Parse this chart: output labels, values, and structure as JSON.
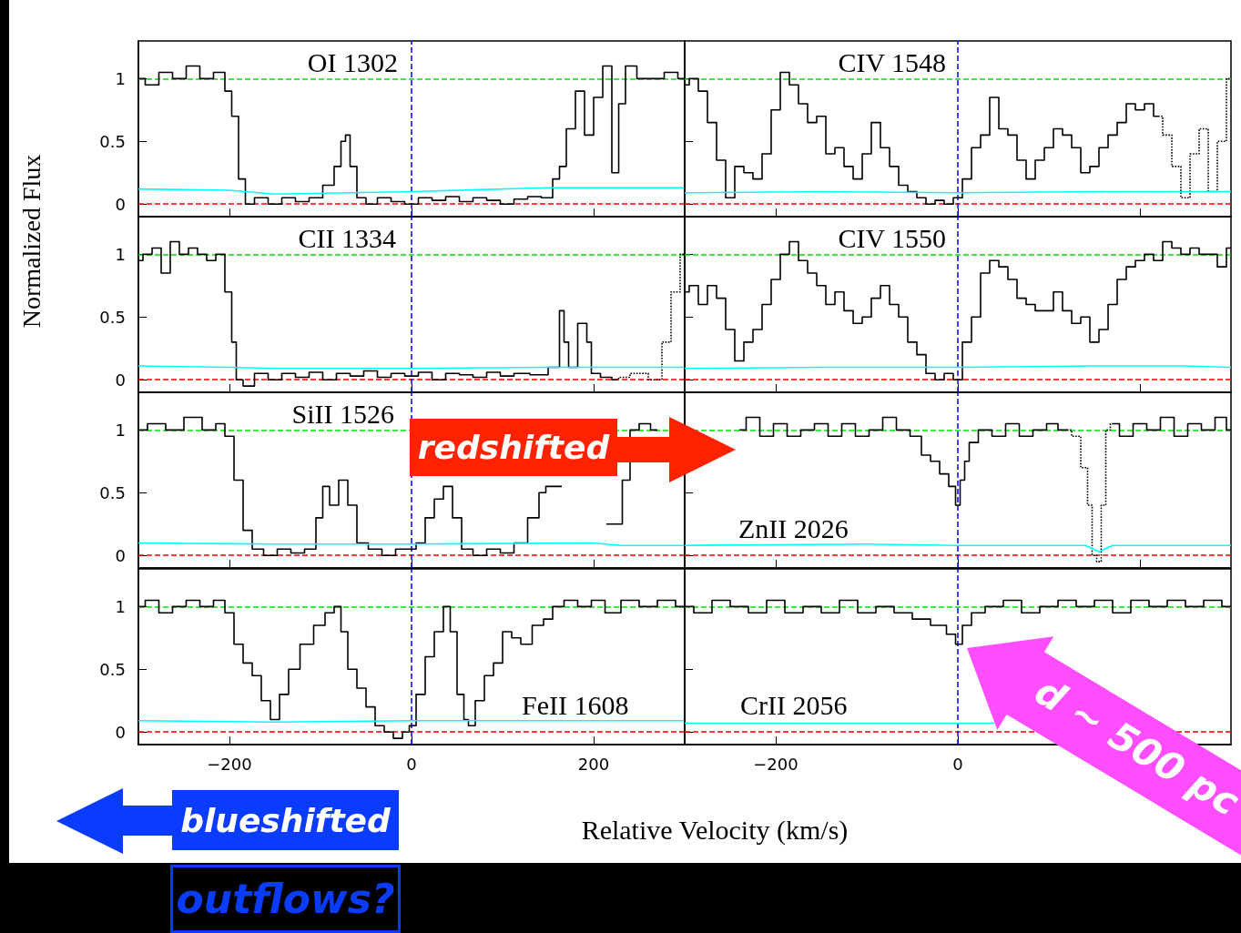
{
  "chart_data": [
    {
      "type": "step",
      "title": "OI 1302",
      "ylabel": "Normalized Flux",
      "xlim": [
        -300,
        300
      ],
      "xticks": [
        -200,
        0,
        200
      ],
      "ylim": [
        -0.1,
        1.3
      ],
      "yticks": [
        0,
        0.5,
        1
      ],
      "tick_labels": "y",
      "ref_lines": [
        {
          "axis": "y",
          "value": 0,
          "color": "#ff0000",
          "line_style": "dashed"
        },
        {
          "axis": "y",
          "value": 1,
          "color": "#00e000",
          "line_style": "dashed"
        },
        {
          "axis": "x",
          "value": 0,
          "color": "#0000ff",
          "line_style": "dashed"
        }
      ],
      "series": [
        {
          "color": "#000000",
          "x": [
            -300,
            -285,
            -270,
            -255,
            -240,
            -225,
            -210,
            -200,
            -195,
            -185,
            -180,
            -165,
            -150,
            -135,
            -120,
            -105,
            -90,
            -80,
            -75,
            -70,
            -65,
            -55,
            -45,
            -30,
            -15,
            0,
            15,
            30,
            45,
            60,
            75,
            90,
            105,
            120,
            135,
            150,
            160,
            165,
            175,
            185,
            195,
            205,
            215,
            225,
            230,
            240,
            255,
            270,
            285,
            300
          ],
          "values": [
            1.0,
            0.95,
            1.05,
            1.0,
            1.1,
            1.0,
            1.05,
            0.9,
            0.7,
            0.2,
            0.0,
            0.05,
            0.0,
            0.05,
            0.02,
            0.05,
            0.15,
            0.3,
            0.5,
            0.55,
            0.3,
            0.05,
            0.0,
            0.05,
            0.02,
            0.0,
            0.05,
            0.03,
            0.06,
            0.02,
            0.05,
            0.03,
            0.0,
            0.04,
            0.06,
            0.05,
            0.2,
            0.3,
            0.6,
            0.9,
            0.55,
            0.85,
            1.1,
            0.25,
            0.8,
            1.1,
            1.0,
            1.0,
            1.05,
            1.0
          ]
        },
        {
          "type": "line",
          "color": "#00ffff",
          "x": [
            -300,
            -200,
            -150,
            0,
            150,
            300
          ],
          "values": [
            0.12,
            0.11,
            0.08,
            0.1,
            0.13,
            0.13
          ]
        }
      ]
    },
    {
      "type": "step",
      "title": "CIV 1548",
      "xlim": [
        -300,
        300
      ],
      "xticks": [
        -200,
        0,
        200
      ],
      "ylim": [
        -0.1,
        1.3
      ],
      "yticks": [
        0,
        0.5,
        1
      ],
      "tick_labels": false,
      "ref_lines": [
        {
          "axis": "y",
          "value": 0,
          "color": "#ff0000",
          "line_style": "dashed"
        },
        {
          "axis": "y",
          "value": 1,
          "color": "#00e000",
          "line_style": "dashed"
        },
        {
          "axis": "x",
          "value": 0,
          "color": "#0000ff",
          "line_style": "dashed"
        }
      ],
      "series": [
        {
          "color": "#000000",
          "x": [
            -300,
            -290,
            -280,
            -270,
            -260,
            -250,
            -240,
            -230,
            -220,
            -210,
            -200,
            -190,
            -180,
            -170,
            -160,
            -150,
            -140,
            -130,
            -120,
            -110,
            -100,
            -90,
            -80,
            -70,
            -60,
            -50,
            -40,
            -30,
            -20,
            -10,
            0,
            10,
            20,
            30,
            40,
            50,
            60,
            70,
            80,
            90,
            100,
            110,
            120,
            130,
            140,
            150,
            160,
            170,
            180,
            190,
            200,
            210,
            220
          ],
          "values": [
            0.95,
            1.0,
            0.9,
            0.65,
            0.35,
            0.05,
            0.3,
            0.25,
            0.2,
            0.4,
            0.75,
            1.05,
            0.95,
            0.8,
            0.65,
            0.7,
            0.4,
            0.45,
            0.3,
            0.2,
            0.4,
            0.65,
            0.45,
            0.3,
            0.15,
            0.1,
            0.05,
            0.0,
            0.03,
            0.0,
            0.05,
            0.2,
            0.45,
            0.55,
            0.85,
            0.6,
            0.55,
            0.35,
            0.2,
            0.35,
            0.45,
            0.6,
            0.55,
            0.45,
            0.25,
            0.3,
            0.45,
            0.55,
            0.65,
            0.8,
            0.75,
            0.8,
            0.7
          ]
        },
        {
          "color": "#000000",
          "line_style": "dotted",
          "x": [
            220,
            230,
            240,
            250,
            260,
            270,
            280,
            290,
            300
          ],
          "values": [
            0.7,
            0.55,
            0.3,
            0.05,
            0.4,
            0.6,
            0.1,
            0.5,
            1.0
          ]
        },
        {
          "type": "line",
          "color": "#00ffff",
          "x": [
            -300,
            -150,
            0,
            150,
            300
          ],
          "values": [
            0.09,
            0.1,
            0.09,
            0.1,
            0.1
          ]
        }
      ]
    },
    {
      "type": "step",
      "title": "CII 1334",
      "xlim": [
        -300,
        300
      ],
      "xticks": [
        -200,
        0,
        200
      ],
      "ylim": [
        -0.1,
        1.3
      ],
      "yticks": [
        0,
        0.5,
        1
      ],
      "tick_labels": "y",
      "ref_lines": [
        {
          "axis": "y",
          "value": 0,
          "color": "#ff0000",
          "line_style": "dashed"
        },
        {
          "axis": "y",
          "value": 1,
          "color": "#00e000",
          "line_style": "dashed"
        },
        {
          "axis": "x",
          "value": 0,
          "color": "#0000ff",
          "line_style": "dashed"
        }
      ],
      "series": [
        {
          "color": "#000000",
          "x": [
            -300,
            -290,
            -280,
            -270,
            -260,
            -250,
            -240,
            -230,
            -220,
            -210,
            -200,
            -195,
            -190,
            -180,
            -165,
            -150,
            -135,
            -120,
            -105,
            -90,
            -75,
            -60,
            -45,
            -30,
            -15,
            0,
            15,
            30,
            45,
            60,
            75,
            90,
            105,
            120,
            140,
            160,
            165,
            170,
            175,
            190,
            195,
            200,
            215,
            225
          ],
          "values": [
            0.95,
            1.0,
            1.05,
            0.85,
            1.1,
            1.0,
            1.05,
            1.0,
            0.95,
            1.0,
            0.7,
            0.3,
            0.0,
            -0.05,
            0.05,
            0.0,
            0.05,
            0.02,
            0.06,
            0.0,
            0.05,
            0.03,
            0.07,
            0.02,
            0.05,
            0.03,
            0.06,
            0.0,
            0.05,
            0.04,
            0.02,
            0.06,
            0.03,
            0.05,
            0.04,
            0.1,
            0.55,
            0.3,
            0.1,
            0.45,
            0.3,
            0.05,
            0.02,
            0.0
          ]
        },
        {
          "color": "#000000",
          "line_style": "dotted",
          "x": [
            225,
            230,
            250,
            270,
            280,
            290,
            300
          ],
          "values": [
            0.0,
            0.02,
            0.05,
            0.0,
            0.3,
            0.7,
            1.0
          ]
        },
        {
          "type": "line",
          "color": "#00ffff",
          "x": [
            -300,
            -200,
            -150,
            0,
            150,
            300
          ],
          "values": [
            0.11,
            0.1,
            0.09,
            0.09,
            0.1,
            0.1
          ]
        }
      ]
    },
    {
      "type": "step",
      "title": "CIV 1550",
      "xlim": [
        -300,
        300
      ],
      "xticks": [
        -200,
        0,
        200
      ],
      "ylim": [
        -0.1,
        1.3
      ],
      "yticks": [
        0,
        0.5,
        1
      ],
      "tick_labels": false,
      "ref_lines": [
        {
          "axis": "y",
          "value": 0,
          "color": "#ff0000",
          "line_style": "dashed"
        },
        {
          "axis": "y",
          "value": 1,
          "color": "#00e000",
          "line_style": "dashed"
        },
        {
          "axis": "x",
          "value": 0,
          "color": "#0000ff",
          "line_style": "dashed"
        }
      ],
      "series": [
        {
          "color": "#000000",
          "x": [
            -300,
            -290,
            -280,
            -270,
            -260,
            -250,
            -240,
            -230,
            -220,
            -210,
            -200,
            -190,
            -180,
            -170,
            -160,
            -150,
            -140,
            -130,
            -120,
            -110,
            -100,
            -90,
            -80,
            -70,
            -60,
            -50,
            -40,
            -30,
            -20,
            -10,
            0,
            10,
            20,
            30,
            40,
            50,
            60,
            70,
            80,
            90,
            100,
            110,
            120,
            130,
            140,
            150,
            160,
            170,
            180,
            190,
            200,
            210,
            220,
            230,
            240,
            250,
            260,
            270,
            280,
            290,
            300
          ],
          "values": [
            0.7,
            0.75,
            0.6,
            0.75,
            0.65,
            0.4,
            0.15,
            0.3,
            0.4,
            0.6,
            0.8,
            1.0,
            1.1,
            0.95,
            0.85,
            0.75,
            0.6,
            0.7,
            0.55,
            0.45,
            0.5,
            0.65,
            0.75,
            0.6,
            0.5,
            0.3,
            0.2,
            0.05,
            0.0,
            0.05,
            0.0,
            0.3,
            0.5,
            0.85,
            0.95,
            0.9,
            0.8,
            0.65,
            0.6,
            0.55,
            0.55,
            0.7,
            0.55,
            0.45,
            0.5,
            0.3,
            0.4,
            0.6,
            0.8,
            0.9,
            0.95,
            1.0,
            0.95,
            1.1,
            1.05,
            1.0,
            1.05,
            1.0,
            1.0,
            0.9,
            1.05
          ]
        },
        {
          "type": "line",
          "color": "#00ffff",
          "x": [
            -300,
            -150,
            0,
            150,
            250,
            300
          ],
          "values": [
            0.09,
            0.1,
            0.1,
            0.11,
            0.11,
            0.1
          ]
        }
      ]
    },
    {
      "type": "step",
      "title": "SiII 1526",
      "xlim": [
        -300,
        300
      ],
      "xticks": [
        -200,
        0,
        200
      ],
      "ylim": [
        -0.1,
        1.3
      ],
      "yticks": [
        0,
        0.5,
        1
      ],
      "tick_labels": "y",
      "annotations": [
        "redshifted"
      ],
      "ref_lines": [
        {
          "axis": "y",
          "value": 0,
          "color": "#ff0000",
          "line_style": "dashed"
        },
        {
          "axis": "y",
          "value": 1,
          "color": "#00e000",
          "line_style": "dashed"
        },
        {
          "axis": "x",
          "value": 0,
          "color": "#0000ff",
          "line_style": "dashed"
        }
      ],
      "series": [
        {
          "color": "#000000",
          "x": [
            -300,
            -280,
            -260,
            -240,
            -220,
            -210,
            -200,
            -190,
            -180,
            -170,
            -155,
            -140,
            -125,
            -110,
            -100,
            -95,
            -85,
            -75,
            -65,
            -55,
            -40,
            -25,
            -10,
            0,
            10,
            20,
            30,
            40,
            50,
            60,
            75,
            90,
            105,
            120,
            135,
            145,
            150,
            180,
            200,
            228,
            235,
            245,
            255,
            270
          ],
          "values": [
            1.0,
            1.05,
            1.0,
            1.1,
            1.0,
            1.05,
            0.95,
            0.6,
            0.2,
            0.05,
            0.0,
            0.05,
            0.02,
            0.05,
            0.3,
            0.55,
            0.4,
            0.6,
            0.4,
            0.1,
            0.05,
            0.0,
            0.05,
            0.05,
            0.1,
            0.3,
            0.45,
            0.55,
            0.3,
            0.05,
            0.0,
            0.05,
            0.02,
            0.1,
            0.3,
            0.5,
            0.55,
            null,
            null,
            0.25,
            0.6,
            1.0,
            1.05,
            1.0
          ]
        },
        {
          "type": "line",
          "color": "#00ffff",
          "x": [
            -300,
            -150,
            0,
            200,
            230,
            300
          ],
          "values": [
            0.1,
            0.09,
            0.09,
            0.1,
            0.08,
            0.08
          ]
        }
      ]
    },
    {
      "type": "step",
      "title": "ZnII 2026",
      "xlim": [
        -300,
        300
      ],
      "xticks": [
        -200,
        0,
        200
      ],
      "ylim": [
        -0.1,
        1.3
      ],
      "yticks": [
        0,
        0.5,
        1
      ],
      "tick_labels": false,
      "ref_lines": [
        {
          "axis": "y",
          "value": 0,
          "color": "#ff0000",
          "line_style": "dashed"
        },
        {
          "axis": "y",
          "value": 1,
          "color": "#00e000",
          "line_style": "dashed"
        },
        {
          "axis": "x",
          "value": 0,
          "color": "#0000ff",
          "line_style": "dashed"
        }
      ],
      "series": [
        {
          "color": "#000000",
          "x": [
            -240,
            -225,
            -210,
            -195,
            -180,
            -165,
            -150,
            -135,
            -120,
            -105,
            -90,
            -75,
            -60,
            -45,
            -35,
            -25,
            -15,
            -5,
            0,
            5,
            10,
            15,
            30,
            45,
            60,
            75,
            90,
            105,
            115,
            120
          ],
          "values": [
            1.0,
            1.1,
            0.95,
            1.05,
            0.95,
            1.0,
            1.05,
            0.95,
            1.05,
            0.95,
            1.0,
            1.1,
            1.0,
            0.95,
            0.8,
            0.75,
            0.65,
            0.55,
            0.4,
            0.6,
            0.75,
            0.9,
            1.0,
            0.95,
            1.05,
            0.95,
            1.0,
            1.05,
            1.0,
            1.0
          ]
        },
        {
          "color": "#000000",
          "line_style": "dotted",
          "x": [
            120,
            130,
            140,
            145,
            150,
            155,
            160,
            165,
            170
          ],
          "values": [
            1.0,
            0.95,
            0.7,
            0.4,
            0.0,
            -0.05,
            0.4,
            1.0,
            1.05
          ]
        },
        {
          "color": "#000000",
          "x": [
            170,
            185,
            200,
            215,
            230,
            245,
            260,
            275,
            290,
            300
          ],
          "values": [
            1.05,
            0.95,
            1.05,
            1.0,
            1.1,
            0.95,
            1.05,
            1.0,
            1.1,
            1.0
          ]
        },
        {
          "type": "line",
          "color": "#00ffff",
          "x": [
            -300,
            -100,
            0,
            140,
            155,
            170,
            300
          ],
          "values": [
            0.08,
            0.09,
            0.08,
            0.08,
            0.03,
            0.08,
            0.08
          ]
        }
      ]
    },
    {
      "type": "step",
      "title": "FeII 1608",
      "annotations": [
        "blueshifted",
        "outflows?"
      ],
      "xlim": [
        -300,
        300
      ],
      "xticks": [
        -200,
        0,
        200
      ],
      "ylim": [
        -0.1,
        1.3
      ],
      "yticks": [
        0,
        0.5,
        1
      ],
      "ref_lines": [
        {
          "axis": "y",
          "value": 0,
          "color": "#ff0000",
          "line_style": "dashed"
        },
        {
          "axis": "y",
          "value": 1,
          "color": "#00e000",
          "line_style": "dashed"
        },
        {
          "axis": "x",
          "value": 0,
          "color": "#0000ff",
          "line_style": "dashed"
        }
      ],
      "series": [
        {
          "color": "#000000",
          "x": [
            -300,
            -285,
            -270,
            -255,
            -240,
            -225,
            -210,
            -200,
            -190,
            -180,
            -170,
            -160,
            -150,
            -140,
            -130,
            -115,
            -100,
            -90,
            -80,
            -75,
            -65,
            -55,
            -45,
            -35,
            -25,
            -15,
            -5,
            0,
            10,
            20,
            30,
            40,
            45,
            55,
            60,
            65,
            75,
            85,
            95,
            105,
            115,
            125,
            140,
            150,
            160,
            175,
            190,
            205,
            220,
            240,
            260,
            280,
            300
          ],
          "values": [
            1.0,
            1.05,
            0.95,
            1.0,
            1.05,
            1.0,
            1.05,
            0.95,
            0.7,
            0.55,
            0.45,
            0.25,
            0.1,
            0.3,
            0.5,
            0.7,
            0.85,
            0.95,
            1.0,
            0.8,
            0.5,
            0.35,
            0.2,
            0.05,
            0.0,
            -0.05,
            0.0,
            0.05,
            0.3,
            0.6,
            0.8,
            1.0,
            0.8,
            0.3,
            0.1,
            0.05,
            0.25,
            0.45,
            0.55,
            0.8,
            0.75,
            0.7,
            0.85,
            0.9,
            1.0,
            1.05,
            1.0,
            1.05,
            0.95,
            1.05,
            1.0,
            1.05,
            1.0
          ]
        },
        {
          "type": "line",
          "color": "#00ffff",
          "x": [
            -300,
            -150,
            0,
            150,
            300
          ],
          "values": [
            0.09,
            0.08,
            0.09,
            0.09,
            0.09
          ]
        }
      ]
    },
    {
      "type": "step",
      "title": "CrII 2056",
      "xlabel": "Relative Velocity (km/s)",
      "annotations": [
        "d ~ 500 pc"
      ],
      "xlim": [
        -300,
        300
      ],
      "xticks": [
        -200,
        0
      ],
      "ylim": [
        -0.1,
        1.3
      ],
      "yticks": [
        0,
        0.5,
        1
      ],
      "tick_labels": "x",
      "ref_lines": [
        {
          "axis": "y",
          "value": 0,
          "color": "#ff0000",
          "line_style": "dashed"
        },
        {
          "axis": "y",
          "value": 1,
          "color": "#00e000",
          "line_style": "dashed"
        },
        {
          "axis": "x",
          "value": 0,
          "color": "#0000ff",
          "line_style": "dashed"
        }
      ],
      "series": [
        {
          "color": "#000000",
          "x": [
            -300,
            -280,
            -260,
            -240,
            -220,
            -200,
            -180,
            -160,
            -140,
            -120,
            -100,
            -80,
            -60,
            -40,
            -20,
            -5,
            0,
            10,
            20,
            40,
            60,
            80,
            100,
            120,
            140,
            160,
            180,
            200,
            220,
            240,
            260,
            280,
            300
          ],
          "values": [
            1.0,
            0.95,
            1.05,
            1.0,
            0.95,
            1.05,
            0.95,
            1.0,
            0.95,
            1.05,
            0.95,
            1.0,
            0.95,
            0.9,
            0.85,
            0.78,
            0.7,
            0.85,
            0.95,
            1.0,
            1.05,
            0.95,
            1.0,
            1.05,
            1.0,
            1.05,
            0.95,
            1.05,
            1.0,
            1.05,
            1.0,
            1.05,
            1.0
          ]
        },
        {
          "type": "line",
          "color": "#00ffff",
          "x": [
            -300,
            -150,
            0,
            40
          ],
          "values": [
            0.07,
            0.07,
            0.07,
            0.07
          ]
        }
      ]
    }
  ]
}
